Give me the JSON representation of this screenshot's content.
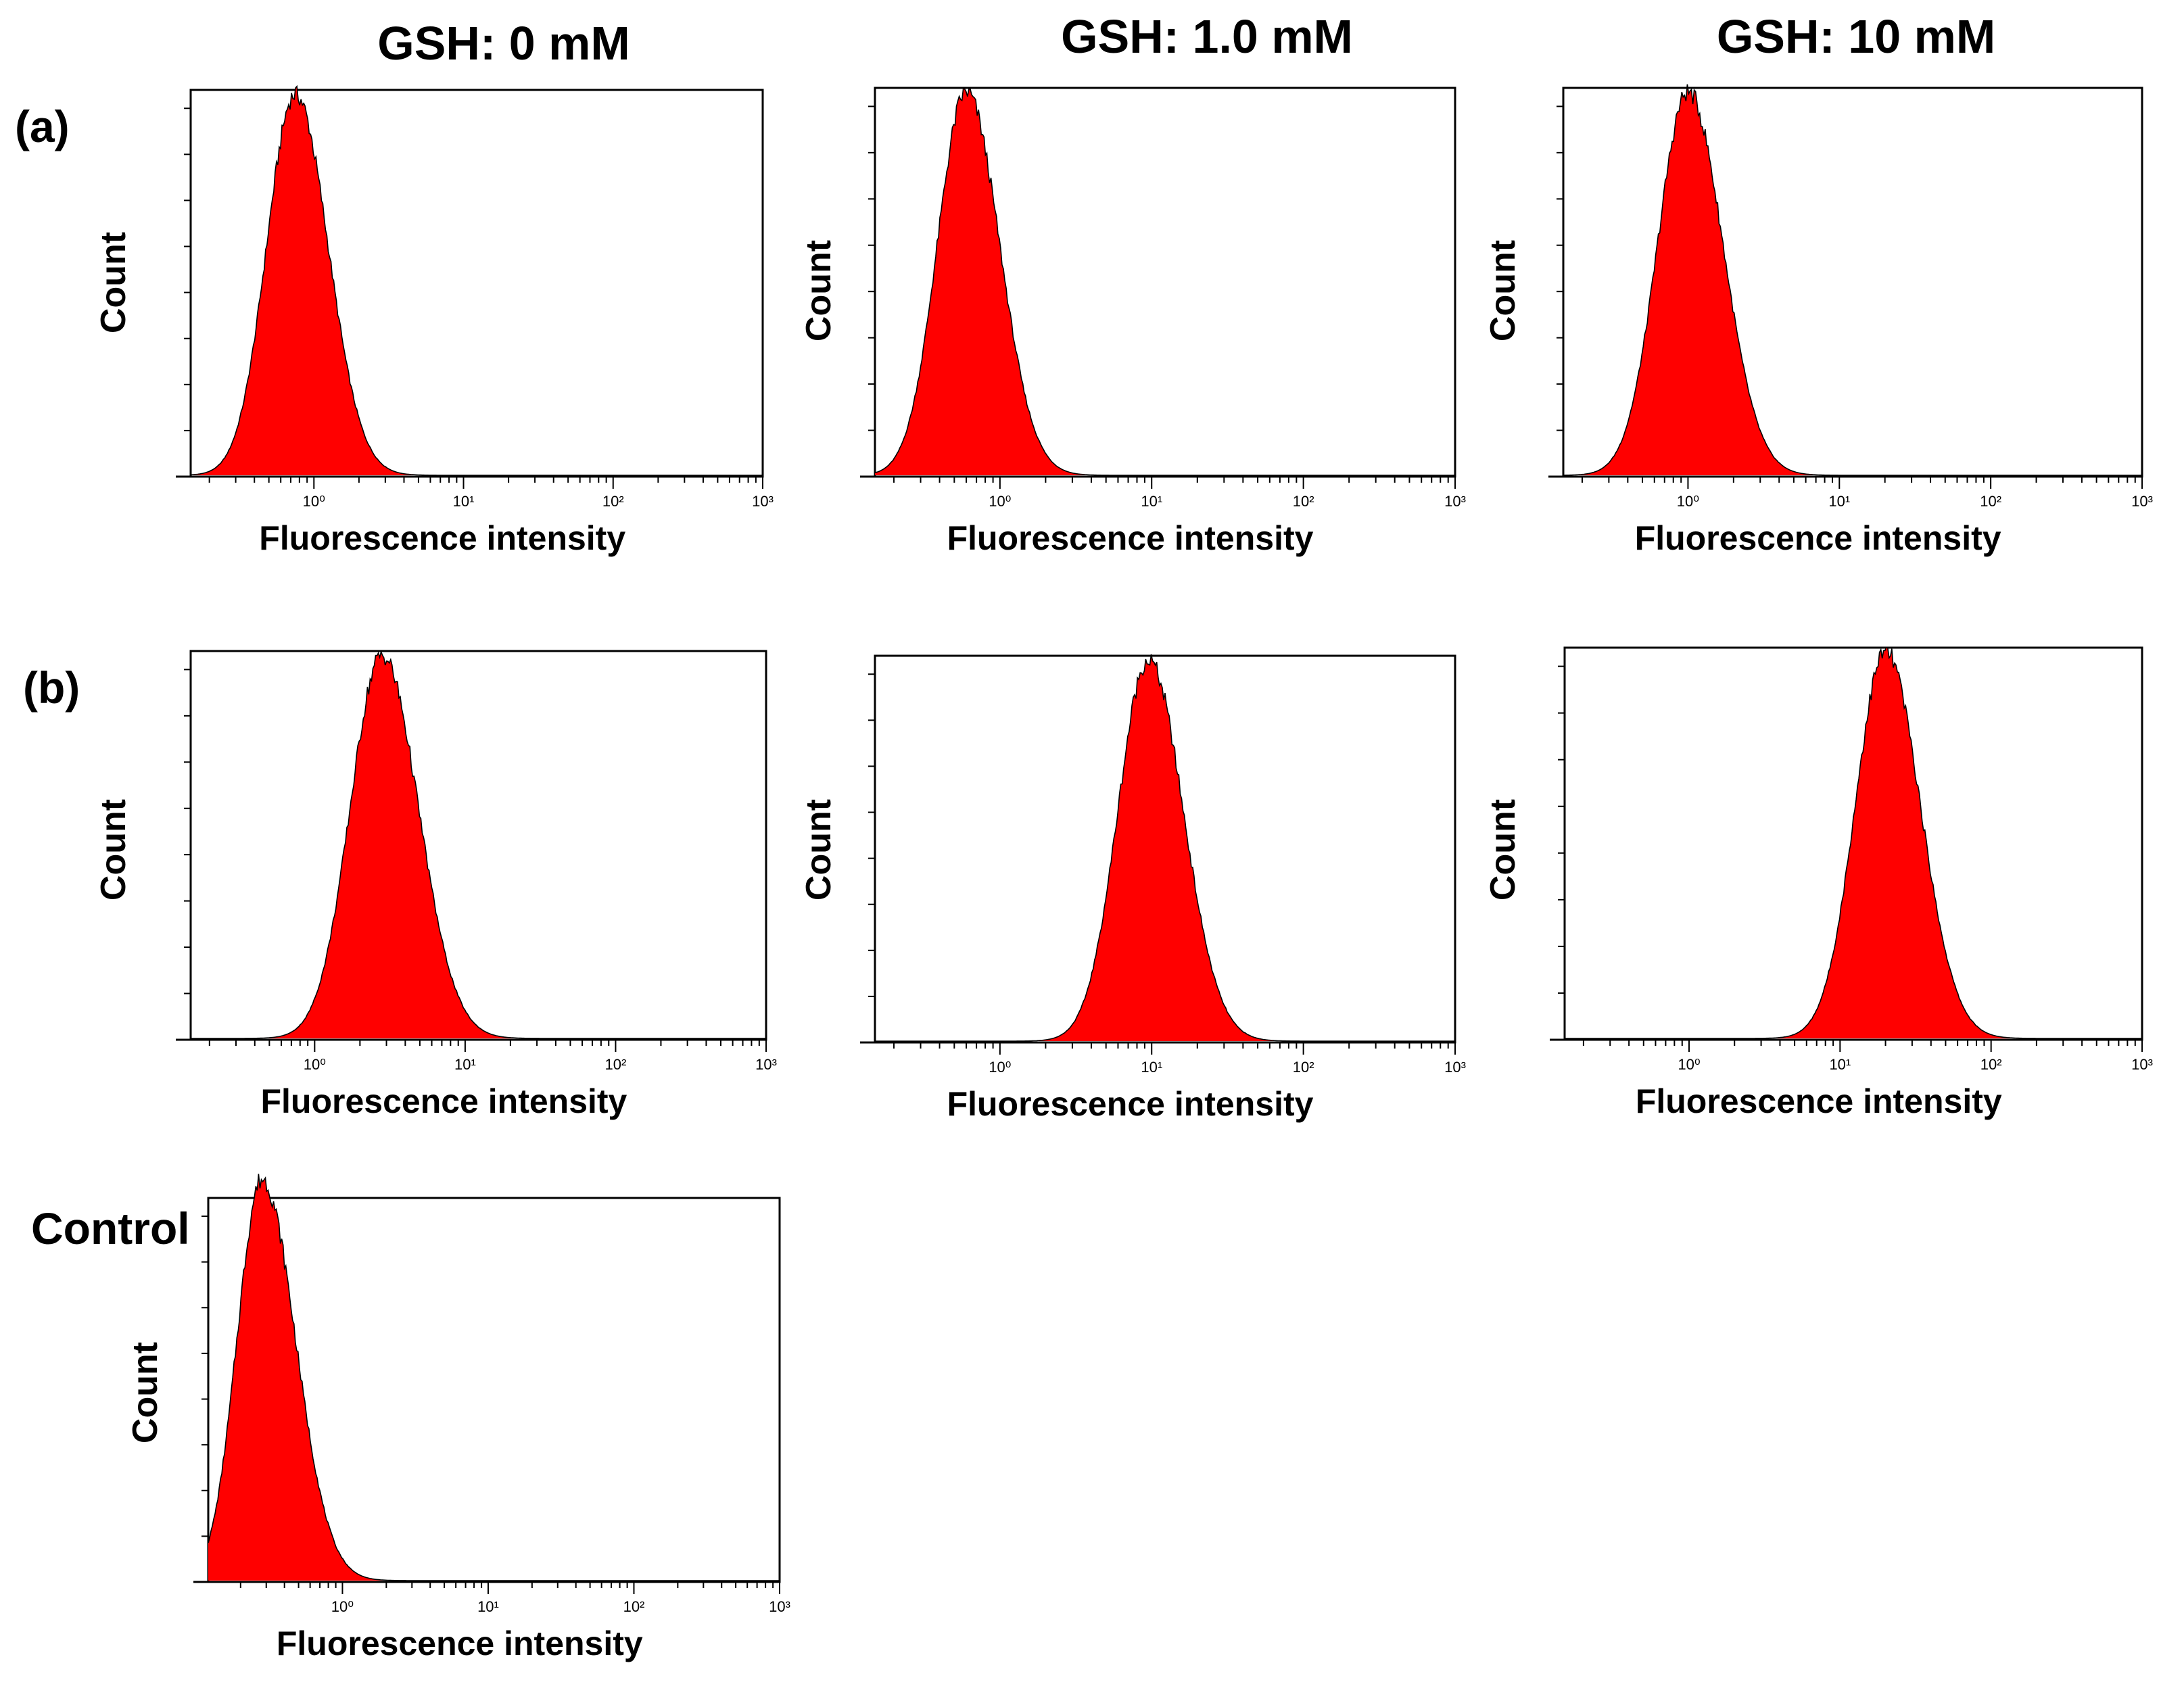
{
  "figure": {
    "column_titles": [
      "GSH: 0 mM",
      "GSH: 1.0 mM",
      "GSH: 10 mM"
    ],
    "row_labels": [
      "(a)",
      "(b)",
      "Control"
    ],
    "colors": {
      "fill": "#ff0000",
      "outline": "#000000",
      "frame": "#000000",
      "background": "#ffffff"
    }
  },
  "chart_data": [
    {
      "type": "area",
      "name": "a-gsh-0mM",
      "row": "(a)",
      "column": "GSH: 0 mM",
      "title": "",
      "xlabel": "Fluorescence intensity",
      "ylabel": "Count",
      "xscale": "log",
      "xlim": [
        0.15,
        1000
      ],
      "xticks": [
        "10⁰",
        "10¹",
        "10²",
        "10³"
      ],
      "peak": 0.75,
      "log_sigma": 0.19,
      "log_skew": 1.15
    },
    {
      "type": "area",
      "name": "a-gsh-1mM",
      "row": "(a)",
      "column": "GSH: 1.0 mM",
      "title": "",
      "xlabel": "Fluorescence intensity",
      "ylabel": "Count",
      "xscale": "log",
      "xlim": [
        0.15,
        1000
      ],
      "xticks": [
        "10⁰",
        "10¹",
        "10²",
        "10³"
      ],
      "peak": 0.6,
      "log_sigma": 0.19,
      "log_skew": 1.15
    },
    {
      "type": "area",
      "name": "a-gsh-10mM",
      "row": "(a)",
      "column": "GSH: 10 mM",
      "title": "",
      "xlabel": "Fluorescence intensity",
      "ylabel": "Count",
      "xscale": "log",
      "xlim": [
        0.15,
        1000
      ],
      "xticks": [
        "10⁰",
        "10¹",
        "10²",
        "10³"
      ],
      "peak": 1.0,
      "log_sigma": 0.2,
      "log_skew": 1.15
    },
    {
      "type": "area",
      "name": "b-gsh-0mM",
      "row": "(b)",
      "column": "GSH: 0 mM",
      "title": "",
      "xlabel": "Fluorescence intensity",
      "ylabel": "Count",
      "xscale": "log",
      "xlim": [
        0.15,
        1000
      ],
      "xticks": [
        "10⁰",
        "10¹",
        "10²",
        "10³"
      ],
      "peak": 2.8,
      "log_sigma": 0.21,
      "log_skew": 1.15
    },
    {
      "type": "area",
      "name": "b-gsh-1mM",
      "row": "(b)",
      "column": "GSH: 1.0 mM",
      "title": "",
      "xlabel": "Fluorescence intensity",
      "ylabel": "Count",
      "xscale": "log",
      "xlim": [
        0.15,
        1000
      ],
      "xticks": [
        "10⁰",
        "10¹",
        "10²",
        "10³"
      ],
      "peak": 9.5,
      "log_sigma": 0.2,
      "log_skew": 1.15
    },
    {
      "type": "area",
      "name": "b-gsh-10mM",
      "row": "(b)",
      "column": "GSH: 10 mM",
      "title": "",
      "xlabel": "Fluorescence intensity",
      "ylabel": "Count",
      "xscale": "log",
      "xlim": [
        0.15,
        1000
      ],
      "xticks": [
        "10⁰",
        "10¹",
        "10²",
        "10³"
      ],
      "peak": 20.0,
      "log_sigma": 0.2,
      "log_skew": 1.15
    },
    {
      "type": "area",
      "name": "control",
      "row": "Control",
      "column": "",
      "title": "",
      "xlabel": "Fluorescence intensity",
      "ylabel": "Count",
      "xscale": "log",
      "xlim": [
        0.12,
        1000
      ],
      "xticks": [
        "10⁰",
        "10¹",
        "10²",
        "10³"
      ],
      "peak": 0.28,
      "log_sigma": 0.17,
      "log_skew": 1.35,
      "y_top_at_peak": true
    }
  ]
}
